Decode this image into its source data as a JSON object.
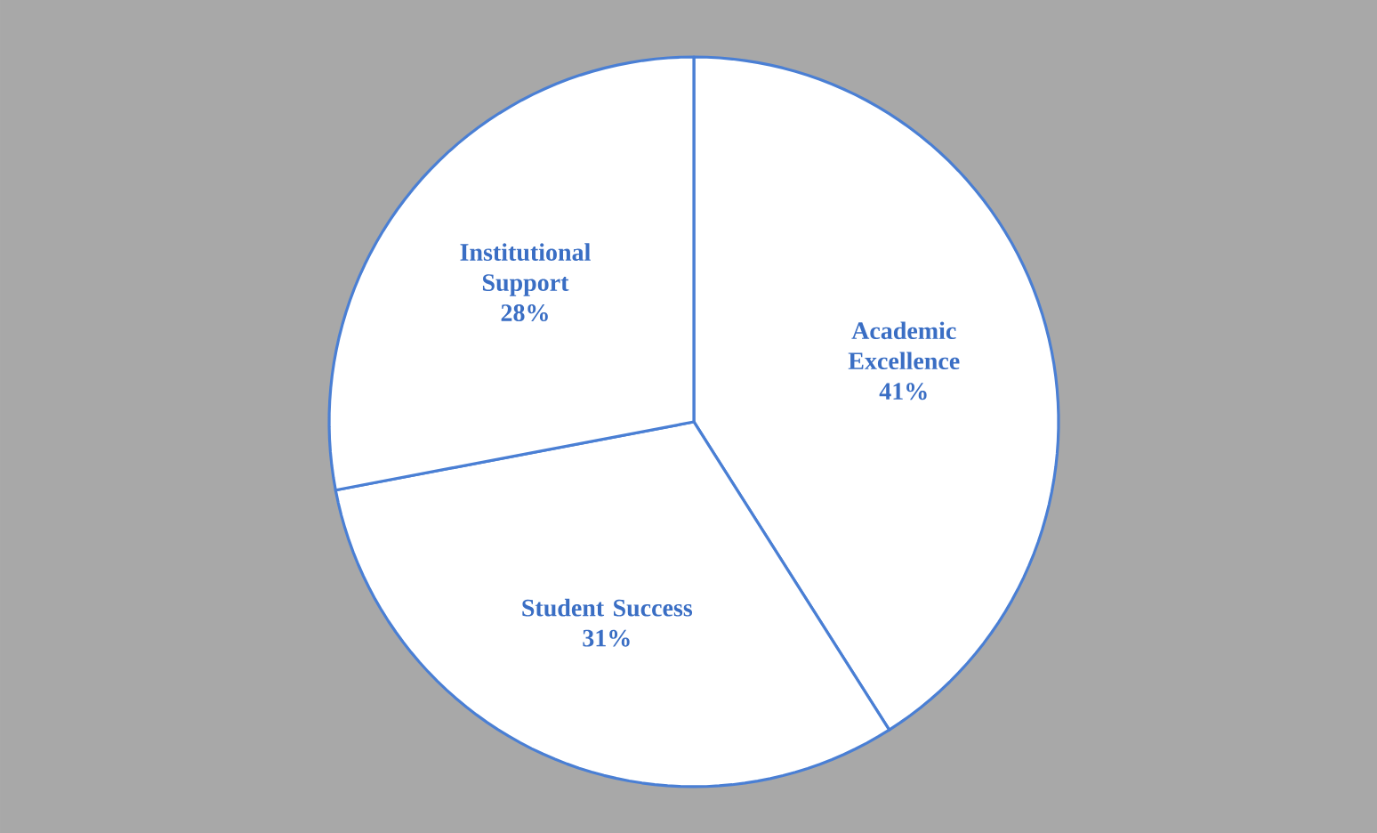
{
  "chart_data": {
    "type": "pie",
    "categories": [
      "Academic Excellence",
      "Student Success",
      "Institutional Support"
    ],
    "values": [
      41,
      31,
      28
    ],
    "colors": [
      "#ffffff",
      "#ffffff",
      "#ffffff"
    ],
    "value_labels": [
      "41%",
      "31%",
      "28%"
    ]
  }
}
